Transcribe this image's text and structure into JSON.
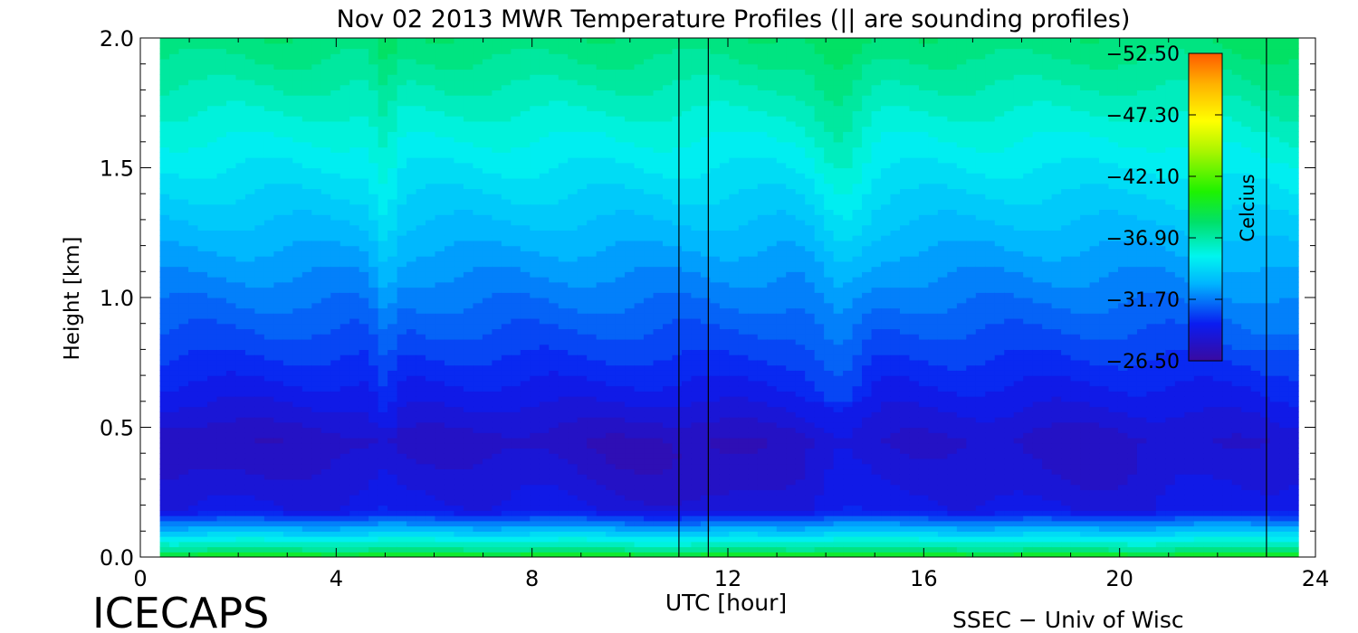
{
  "chart_data": {
    "type": "heatmap",
    "title": "Nov 02 2013 MWR Temperature Profiles (|| are sounding profiles)",
    "xlabel": "UTC [hour]",
    "ylabel": "Height [km]",
    "xlim": [
      0,
      24
    ],
    "ylim": [
      0,
      2
    ],
    "x_ticks": [
      0,
      4,
      8,
      12,
      16,
      20,
      24
    ],
    "x_tick_labels": [
      "0",
      "4",
      "8",
      "12",
      "16",
      "20",
      "24"
    ],
    "y_ticks": [
      0,
      0.5,
      1,
      1.5,
      2
    ],
    "y_tick_labels": [
      "0.0",
      "0.5",
      "1.0",
      "1.5",
      "2.0"
    ],
    "data_x_range": [
      0.4,
      23.65
    ],
    "sounding_times": [
      11.0,
      11.6,
      23.0
    ],
    "colorbar": {
      "label": "Celcius",
      "range": [
        -52.5,
        -26.5
      ],
      "ticks": [
        -26.5,
        -31.7,
        -36.9,
        -42.1,
        -47.3,
        -52.5
      ],
      "tick_labels": [
        "−26.50",
        "−31.70",
        "−36.90",
        "−42.10",
        "−47.30",
        "−52.50"
      ]
    },
    "grid": false
  },
  "footer": {
    "left": "ICECAPS",
    "right": "SSEC − Univ of Wisc"
  }
}
